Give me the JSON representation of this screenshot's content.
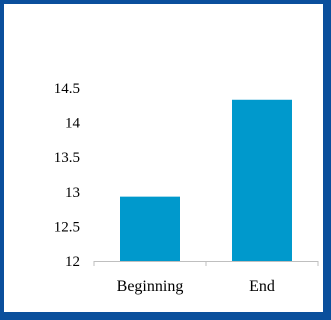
{
  "chart_data": {
    "type": "bar",
    "title": "",
    "xlabel": "",
    "ylabel": "",
    "categories": [
      "Beginning",
      "End"
    ],
    "values": [
      12.93,
      14.33
    ],
    "ylim": [
      12,
      14.5
    ],
    "yticks": [
      "14.5",
      "14",
      "13.5",
      "13",
      "12.5",
      "12"
    ],
    "grid": false,
    "legend": "none",
    "bar_color": "#0099cc",
    "frame_color": "#0a4f9c"
  }
}
